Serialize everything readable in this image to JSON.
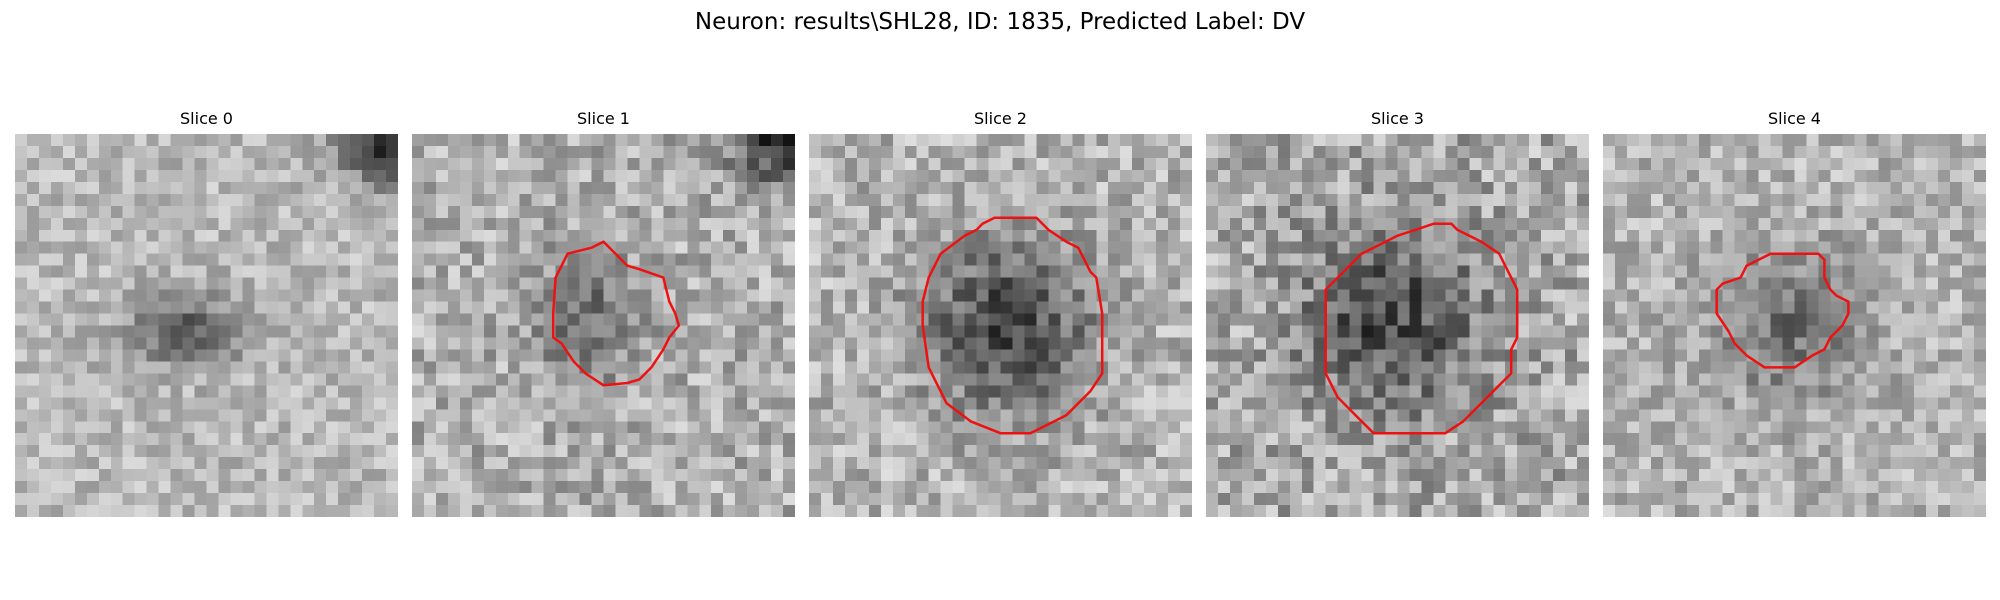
{
  "figure": {
    "title": "Neuron: results\\SHL28, ID: 1835, Predicted Label: DV"
  },
  "panels": [
    {
      "title": "Slice 0",
      "has_roi": false
    },
    {
      "title": "Slice 1",
      "has_roi": true
    },
    {
      "title": "Slice 2",
      "has_roi": true
    },
    {
      "title": "Slice 3",
      "has_roi": true
    },
    {
      "title": "Slice 4",
      "has_roi": true
    }
  ],
  "colors": {
    "roi_outline": "#ee1111",
    "colormap": "grayscale"
  }
}
